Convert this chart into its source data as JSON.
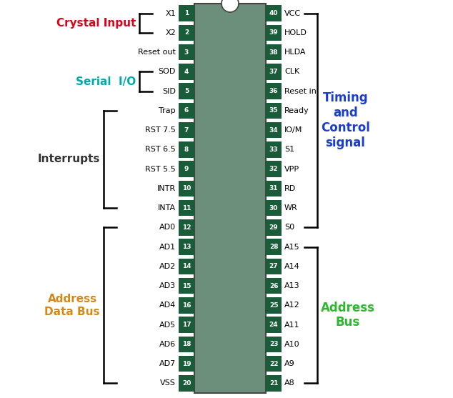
{
  "bg_color": "#ffffff",
  "chip_color": "#6b8f7a",
  "pin_box_color": "#1a5c3a",
  "pin_text_color": "#ffffff",
  "left_pins": [
    {
      "num": 1,
      "label": "X1"
    },
    {
      "num": 2,
      "label": "X2"
    },
    {
      "num": 3,
      "label": "Reset out"
    },
    {
      "num": 4,
      "label": "SOD"
    },
    {
      "num": 5,
      "label": "SID"
    },
    {
      "num": 6,
      "label": "Trap"
    },
    {
      "num": 7,
      "label": "RST 7.5"
    },
    {
      "num": 8,
      "label": "RST 6.5"
    },
    {
      "num": 9,
      "label": "RST 5.5"
    },
    {
      "num": 10,
      "label": "INTR"
    },
    {
      "num": 11,
      "label": "INTA"
    },
    {
      "num": 12,
      "label": "AD0"
    },
    {
      "num": 13,
      "label": "AD1"
    },
    {
      "num": 14,
      "label": "AD2"
    },
    {
      "num": 15,
      "label": "AD3"
    },
    {
      "num": 16,
      "label": "AD4"
    },
    {
      "num": 17,
      "label": "AD5"
    },
    {
      "num": 18,
      "label": "AD6"
    },
    {
      "num": 19,
      "label": "AD7"
    },
    {
      "num": 20,
      "label": "VSS"
    }
  ],
  "right_pins": [
    {
      "num": 40,
      "label": "VCC"
    },
    {
      "num": 39,
      "label": "HOLD"
    },
    {
      "num": 38,
      "label": "HLDA"
    },
    {
      "num": 37,
      "label": "CLK"
    },
    {
      "num": 36,
      "label": "Reset in"
    },
    {
      "num": 35,
      "label": "Ready"
    },
    {
      "num": 34,
      "label": "IO/M"
    },
    {
      "num": 33,
      "label": "S1"
    },
    {
      "num": 32,
      "label": "VPP"
    },
    {
      "num": 31,
      "label": "RD"
    },
    {
      "num": 30,
      "label": "WR"
    },
    {
      "num": 29,
      "label": "S0"
    },
    {
      "num": 28,
      "label": "A15"
    },
    {
      "num": 27,
      "label": "A14"
    },
    {
      "num": 26,
      "label": "A13"
    },
    {
      "num": 25,
      "label": "A12"
    },
    {
      "num": 24,
      "label": "A11"
    },
    {
      "num": 23,
      "label": "A10"
    },
    {
      "num": 22,
      "label": "A9"
    },
    {
      "num": 21,
      "label": "A8"
    }
  ],
  "crystal_input_color": "#e0001a",
  "serial_io_color": "#00aaaa",
  "interrupts_color": "#333333",
  "addr_data_color": "#d4881a",
  "timing_color": "#1a3dcc",
  "addr_bus_color": "#2db82d"
}
